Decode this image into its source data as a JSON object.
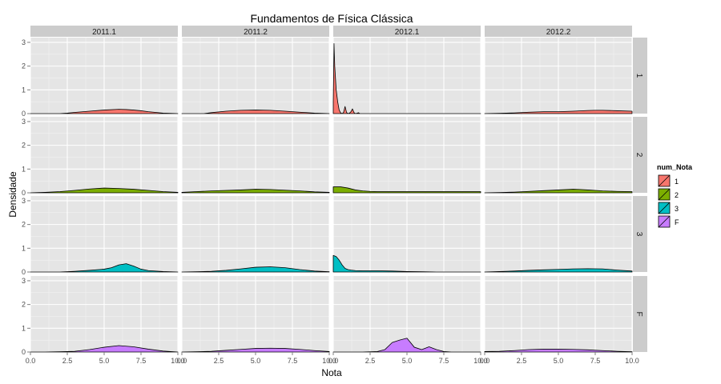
{
  "chart_data": {
    "type": "area",
    "title": "Fundamentos de Física Clássica",
    "xlabel": "Nota",
    "ylabel": "Densidade",
    "xlim": [
      0,
      10
    ],
    "ylim": [
      0,
      3.2
    ],
    "x_ticks": [
      "0.0",
      "2.5",
      "5.0",
      "7.5",
      "10.0"
    ],
    "y_ticks": [
      "0",
      "1",
      "2",
      "3"
    ],
    "x_tick_values": [
      0,
      2.5,
      5,
      7.5,
      10
    ],
    "y_tick_values": [
      0,
      1,
      2,
      3
    ],
    "columns": [
      "2011.1",
      "2011.2",
      "2012.1",
      "2012.2"
    ],
    "rows": [
      "1",
      "2",
      "3",
      "F"
    ],
    "grid": true,
    "legend": {
      "title": "num_Nota",
      "position": "right",
      "entries": [
        {
          "label": "1",
          "color": "#F8766D"
        },
        {
          "label": "2",
          "color": "#7CAE00"
        },
        {
          "label": "3",
          "color": "#00BFC4"
        },
        {
          "label": "F",
          "color": "#C77CFF"
        }
      ]
    },
    "panels": [
      {
        "row": "1",
        "col": "2011.1",
        "x": [
          0,
          2,
          2.5,
          3,
          4,
          5,
          6,
          6.5,
          7,
          7.5,
          8,
          9,
          10
        ],
        "y": [
          0,
          0,
          0.02,
          0.05,
          0.1,
          0.15,
          0.18,
          0.17,
          0.15,
          0.12,
          0.08,
          0.02,
          0
        ]
      },
      {
        "row": "1",
        "col": "2011.2",
        "x": [
          0,
          1.5,
          2,
          3,
          4,
          5,
          6,
          7,
          8,
          9,
          10
        ],
        "y": [
          0,
          0,
          0.04,
          0.1,
          0.14,
          0.15,
          0.14,
          0.1,
          0.06,
          0.02,
          0
        ]
      },
      {
        "row": "1",
        "col": "2012.1",
        "x": [
          0,
          0.05,
          0.1,
          0.2,
          0.3,
          0.4,
          0.5,
          0.6,
          0.7,
          0.8,
          0.9,
          1.0,
          1.1,
          1.2,
          1.3,
          1.4,
          1.5,
          1.6,
          1.7,
          1.8,
          2.5,
          3.0,
          3.5,
          4.0,
          4.5,
          5.0,
          5.5,
          6.0,
          6.5,
          7.0,
          7.5,
          8.0,
          8.5,
          9.0,
          9.5,
          10.0
        ],
        "y": [
          0.5,
          2.95,
          2.0,
          1.0,
          0.5,
          0.15,
          0.03,
          0,
          0.05,
          0.3,
          0.05,
          0,
          0.02,
          0.08,
          0.2,
          0.05,
          0,
          0.01,
          0.04,
          0,
          0,
          0,
          0,
          0,
          0,
          0,
          0,
          0,
          0,
          0,
          0,
          0,
          0,
          0,
          0,
          0
        ]
      },
      {
        "row": "1",
        "col": "2012.2",
        "x": [
          0,
          1,
          2,
          3,
          4,
          5,
          6,
          7,
          7.5,
          8,
          9,
          10
        ],
        "y": [
          0,
          0.01,
          0.03,
          0.06,
          0.08,
          0.08,
          0.1,
          0.13,
          0.14,
          0.14,
          0.12,
          0.1
        ]
      },
      {
        "row": "2",
        "col": "2011.1",
        "x": [
          0,
          1,
          2,
          3,
          4,
          5,
          6,
          7,
          8,
          9,
          10
        ],
        "y": [
          0,
          0.02,
          0.05,
          0.1,
          0.16,
          0.2,
          0.18,
          0.15,
          0.1,
          0.05,
          0.02
        ]
      },
      {
        "row": "2",
        "col": "2011.2",
        "x": [
          0,
          1,
          2,
          3,
          4,
          5,
          6,
          7,
          8,
          9,
          10
        ],
        "y": [
          0.02,
          0.05,
          0.08,
          0.1,
          0.12,
          0.15,
          0.14,
          0.11,
          0.08,
          0.04,
          0.02
        ]
      },
      {
        "row": "2",
        "col": "2012.1",
        "x": [
          0,
          0.5,
          1,
          1.5,
          2,
          2.5,
          3,
          4,
          5,
          6,
          7,
          8,
          9,
          10
        ],
        "y": [
          0.25,
          0.25,
          0.2,
          0.12,
          0.08,
          0.06,
          0.05,
          0.05,
          0.05,
          0.05,
          0.05,
          0.05,
          0.05,
          0.05
        ]
      },
      {
        "row": "2",
        "col": "2012.2",
        "x": [
          0,
          1,
          2,
          3,
          4,
          5,
          6,
          6.5,
          7,
          7.5,
          8,
          9,
          10
        ],
        "y": [
          0,
          0.01,
          0.03,
          0.06,
          0.09,
          0.12,
          0.15,
          0.14,
          0.12,
          0.1,
          0.08,
          0.06,
          0.05
        ]
      },
      {
        "row": "3",
        "col": "2011.1",
        "x": [
          0,
          1,
          2,
          3,
          4,
          5,
          5.5,
          6,
          6.5,
          7,
          7.5,
          8,
          9,
          10
        ],
        "y": [
          0,
          0,
          0,
          0.03,
          0.07,
          0.12,
          0.18,
          0.3,
          0.35,
          0.25,
          0.12,
          0.06,
          0.02,
          0
        ]
      },
      {
        "row": "3",
        "col": "2011.2",
        "x": [
          0,
          1,
          2,
          3,
          4,
          5,
          6,
          7,
          8,
          9,
          10
        ],
        "y": [
          0,
          0.01,
          0.03,
          0.07,
          0.13,
          0.2,
          0.22,
          0.18,
          0.1,
          0.04,
          0.01
        ]
      },
      {
        "row": "3",
        "col": "2012.1",
        "x": [
          0,
          0.2,
          0.4,
          0.6,
          0.8,
          1.0,
          1.2,
          1.5,
          2,
          2.5,
          3,
          4,
          5,
          6,
          7,
          8,
          9,
          10
        ],
        "y": [
          0.7,
          0.65,
          0.5,
          0.3,
          0.15,
          0.1,
          0.08,
          0.06,
          0.05,
          0.05,
          0.05,
          0.04,
          0.02,
          0.01,
          0,
          0,
          0,
          0
        ]
      },
      {
        "row": "3",
        "col": "2012.2",
        "x": [
          0,
          1,
          2,
          3,
          4,
          5,
          6,
          7,
          8,
          9,
          10
        ],
        "y": [
          0,
          0.02,
          0.04,
          0.07,
          0.09,
          0.11,
          0.13,
          0.14,
          0.13,
          0.08,
          0.04
        ]
      },
      {
        "row": "F",
        "col": "2011.1",
        "x": [
          0,
          1,
          2,
          3,
          4,
          5,
          6,
          7,
          8,
          9,
          10
        ],
        "y": [
          0,
          0,
          0.01,
          0.03,
          0.1,
          0.2,
          0.27,
          0.22,
          0.12,
          0.04,
          0
        ]
      },
      {
        "row": "F",
        "col": "2011.2",
        "x": [
          0,
          1,
          2,
          3,
          4,
          5,
          6,
          7,
          8,
          9,
          10
        ],
        "y": [
          0,
          0.01,
          0.03,
          0.07,
          0.11,
          0.15,
          0.16,
          0.15,
          0.11,
          0.06,
          0.02
        ]
      },
      {
        "row": "F",
        "col": "2012.1",
        "x": [
          0,
          1,
          2,
          3,
          3.5,
          4,
          4.5,
          5,
          5.5,
          6,
          6.5,
          7,
          7.5,
          8,
          9,
          10
        ],
        "y": [
          0,
          0,
          0,
          0.02,
          0.1,
          0.4,
          0.5,
          0.58,
          0.2,
          0.1,
          0.22,
          0.1,
          0.02,
          0,
          0,
          0
        ]
      },
      {
        "row": "F",
        "col": "2012.2",
        "x": [
          0,
          1,
          2,
          3,
          4,
          5,
          6,
          7,
          8,
          9,
          10
        ],
        "y": [
          0.02,
          0.03,
          0.06,
          0.1,
          0.12,
          0.12,
          0.11,
          0.09,
          0.06,
          0.03,
          0.01
        ]
      }
    ]
  }
}
